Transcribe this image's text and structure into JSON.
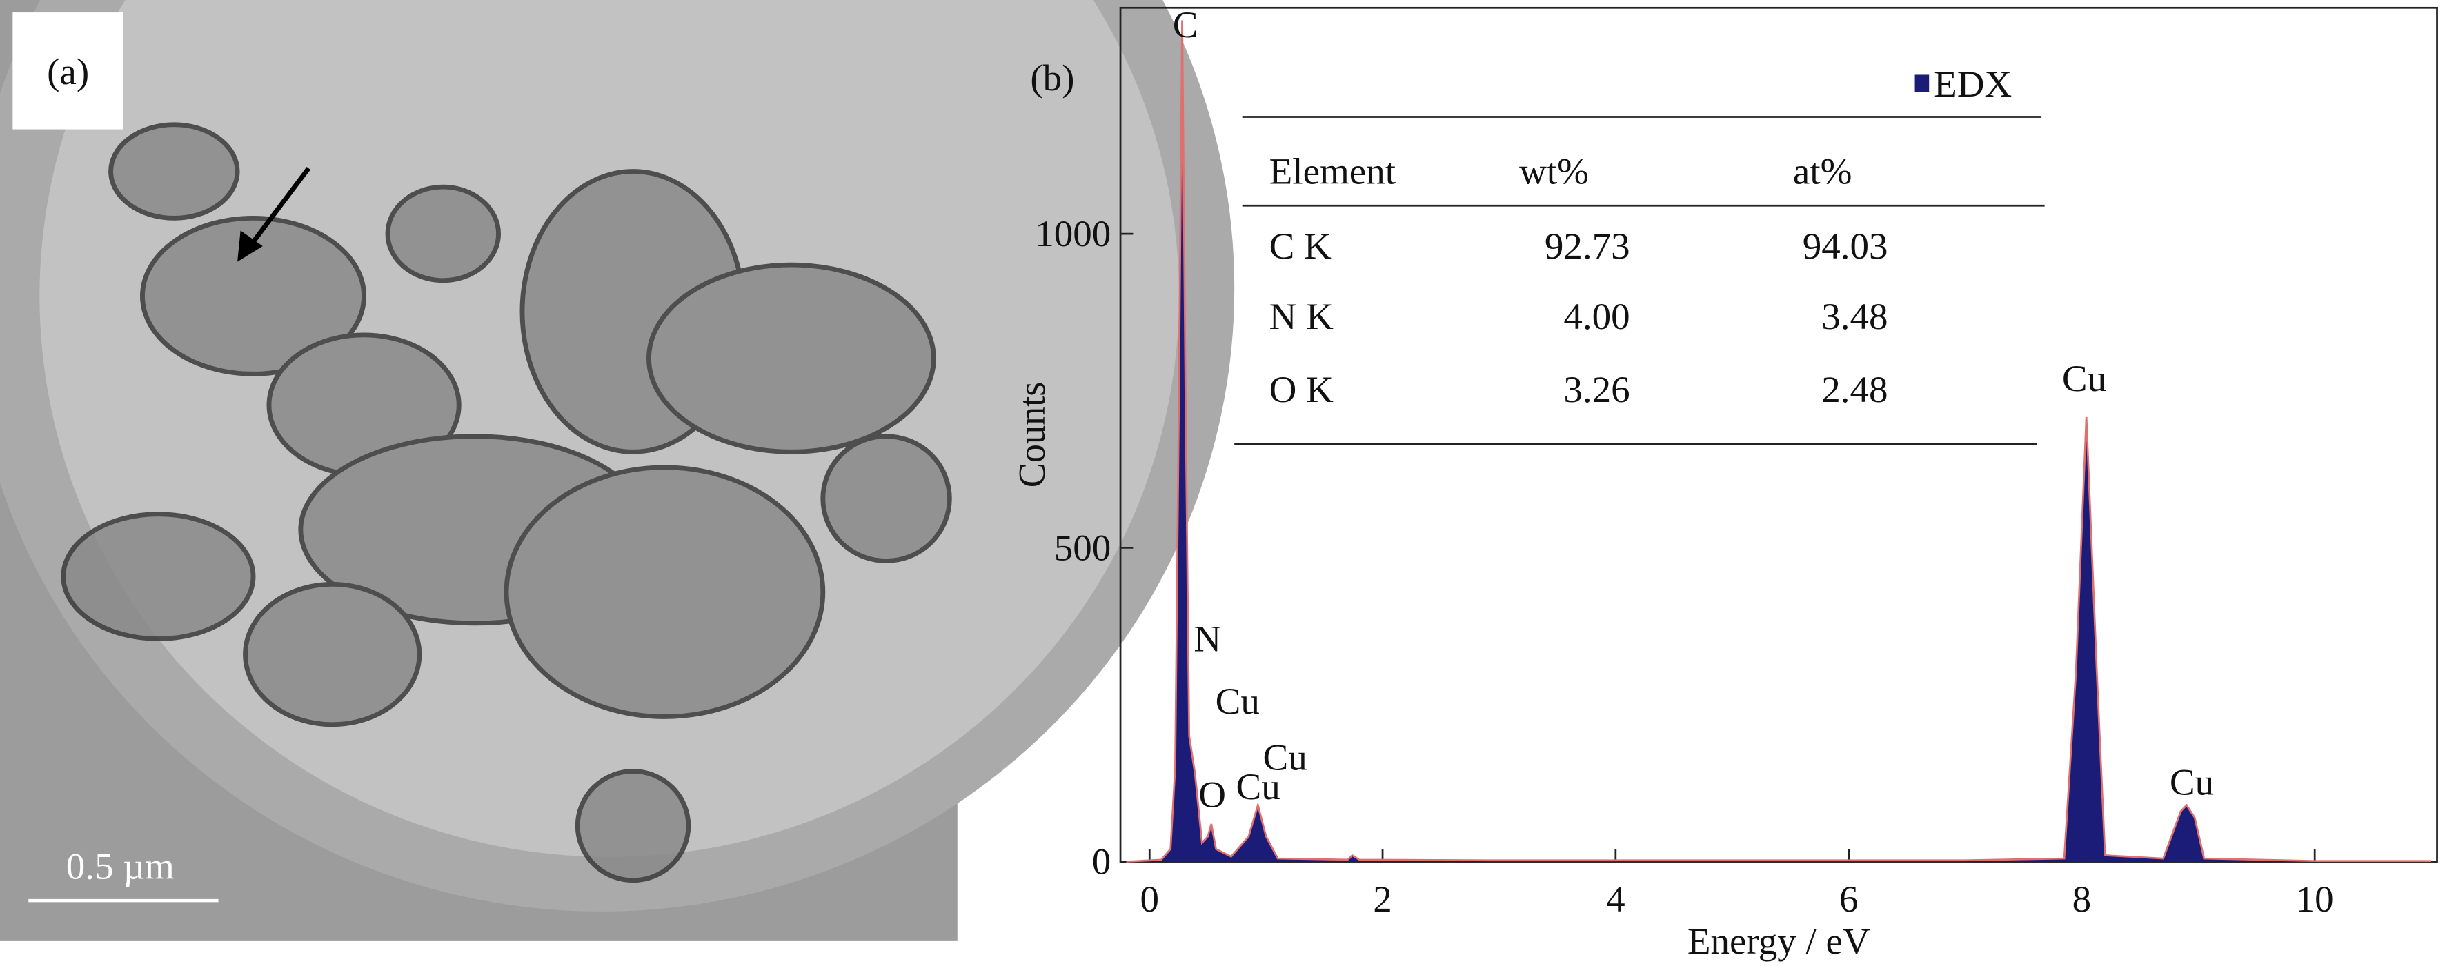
{
  "panel_a": {
    "label": "(a)",
    "scale_bar": "0.5 µm"
  },
  "chart_data": {
    "type": "area",
    "panel_label": "(b)",
    "x_label": "Energy / eV",
    "y_label": "Counts",
    "x": [
      -0.2,
      0.1,
      0.18,
      0.22,
      0.25,
      0.28,
      0.31,
      0.34,
      0.39,
      0.45,
      0.5,
      0.53,
      0.57,
      0.7,
      0.85,
      0.93,
      1.0,
      1.1,
      1.7,
      1.74,
      1.8,
      3,
      5,
      7,
      7.85,
      7.95,
      8.04,
      8.13,
      8.2,
      8.7,
      8.85,
      8.9,
      8.97,
      9.05,
      10,
      11
    ],
    "series": [
      {
        "name": "EDX",
        "color": "#1b1b78",
        "line_color": "#e07070",
        "values": [
          0,
          3,
          20,
          150,
          700,
          1340,
          720,
          200,
          140,
          30,
          40,
          60,
          20,
          8,
          40,
          90,
          40,
          5,
          3,
          10,
          3,
          2,
          2,
          2,
          5,
          300,
          708,
          300,
          10,
          5,
          80,
          90,
          70,
          5,
          1,
          1
        ]
      }
    ],
    "xlim": [
      -0.25,
      11.05
    ],
    "ylim": [
      0,
      1360
    ],
    "xticks": [
      0,
      2,
      4,
      6,
      8,
      10
    ],
    "yticks": [
      0,
      500,
      1000
    ],
    "legend": "top-right",
    "annotations": [
      "C",
      "N",
      "Cu",
      "O",
      "Cu",
      "Cu",
      "Cu",
      "Cu"
    ],
    "table": {
      "columns": [
        "Element",
        "wt%",
        "at%"
      ],
      "rows": [
        [
          "C K",
          "92.73",
          "94.03"
        ],
        [
          "N K",
          "4.00",
          "3.48"
        ],
        [
          "O K",
          "3.26",
          "2.48"
        ]
      ]
    }
  }
}
